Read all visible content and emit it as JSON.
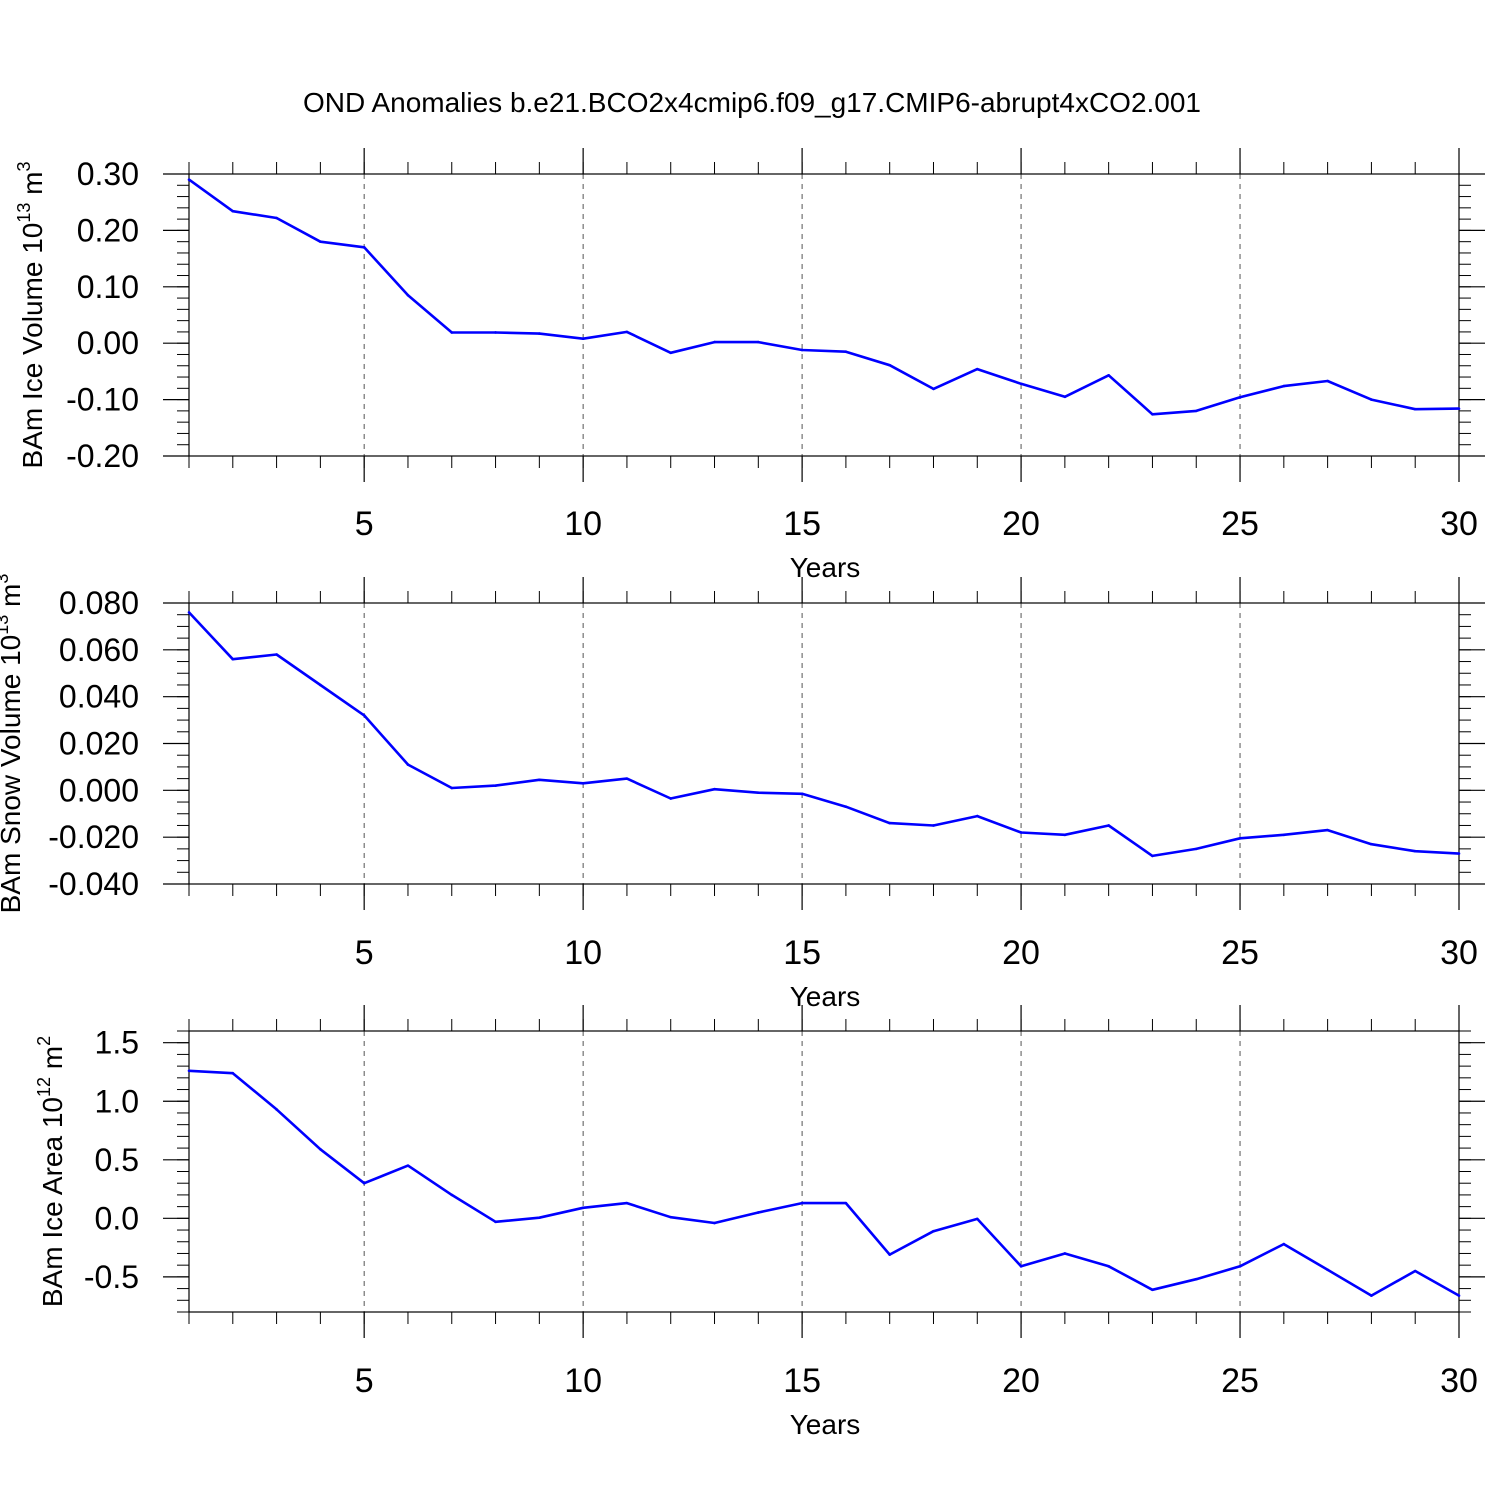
{
  "title": "OND Anomalies b.e21.BCO2x4cmip6.f09_g17.CMIP6-abrupt4xCO2.001",
  "colors": {
    "line": "#0000ff",
    "axis": "#000000",
    "grid": "#555555"
  },
  "chart_data": [
    {
      "type": "line",
      "ylabel": {
        "main": "BAm Ice Volume 10",
        "sup": "13",
        "unit": " m",
        "unit_sup": "3"
      },
      "xlabel": "Years",
      "xlim": [
        1,
        30
      ],
      "ylim": [
        -0.2,
        0.3
      ],
      "x_ticks": [
        5,
        10,
        15,
        20,
        25,
        30
      ],
      "x_tick_labels": [
        "5",
        "10",
        "15",
        "20",
        "25",
        "30"
      ],
      "y_ticks": [
        -0.2,
        -0.1,
        0.0,
        0.1,
        0.2,
        0.3
      ],
      "y_tick_labels": [
        "-0.20",
        "-0.10",
        "0.00",
        "0.10",
        "0.20",
        "0.30"
      ],
      "grid": "vertical dashed at major x ticks",
      "x": [
        1,
        2,
        3,
        4,
        5,
        6,
        7,
        8,
        9,
        10,
        11,
        12,
        13,
        14,
        15,
        16,
        17,
        18,
        19,
        20,
        21,
        22,
        23,
        24,
        25,
        26,
        27,
        28,
        29,
        30
      ],
      "series": [
        {
          "values": [
            0.29,
            0.234,
            0.222,
            0.18,
            0.17,
            0.085,
            0.019,
            0.019,
            0.017,
            0.008,
            0.02,
            -0.017,
            0.002,
            0.002,
            -0.012,
            -0.015,
            -0.039,
            -0.081,
            -0.046,
            -0.072,
            -0.095,
            -0.057,
            -0.126,
            -0.12,
            -0.096,
            -0.076,
            -0.067,
            -0.1,
            -0.117,
            -0.116
          ]
        }
      ]
    },
    {
      "type": "line",
      "ylabel": {
        "main": "BAm Snow Volume 10",
        "sup": "13",
        "unit": " m",
        "unit_sup": "3"
      },
      "xlabel": "Years",
      "xlim": [
        1,
        30
      ],
      "ylim": [
        -0.04,
        0.08
      ],
      "x_ticks": [
        5,
        10,
        15,
        20,
        25,
        30
      ],
      "x_tick_labels": [
        "5",
        "10",
        "15",
        "20",
        "25",
        "30"
      ],
      "y_ticks": [
        -0.04,
        -0.02,
        0.0,
        0.02,
        0.04,
        0.06,
        0.08
      ],
      "y_tick_labels": [
        "-0.040",
        "-0.020",
        "0.000",
        "0.020",
        "0.040",
        "0.060",
        "0.080"
      ],
      "grid": "vertical dashed at major x ticks",
      "x": [
        1,
        2,
        3,
        4,
        5,
        6,
        7,
        8,
        9,
        10,
        11,
        12,
        13,
        14,
        15,
        16,
        17,
        18,
        19,
        20,
        21,
        22,
        23,
        24,
        25,
        26,
        27,
        28,
        29,
        30
      ],
      "series": [
        {
          "values": [
            0.076,
            0.056,
            0.058,
            0.045,
            0.032,
            0.011,
            0.001,
            0.002,
            0.0045,
            0.003,
            0.005,
            -0.0035,
            0.0005,
            -0.001,
            -0.0015,
            -0.007,
            -0.014,
            -0.015,
            -0.011,
            -0.018,
            -0.019,
            -0.015,
            -0.028,
            -0.025,
            -0.0205,
            -0.019,
            -0.017,
            -0.023,
            -0.026,
            -0.027
          ]
        }
      ]
    },
    {
      "type": "line",
      "ylabel": {
        "main": "BAm Ice Area 10",
        "sup": "12",
        "unit": " m",
        "unit_sup": "2"
      },
      "xlabel": "Years",
      "xlim": [
        1,
        30
      ],
      "ylim": [
        -0.8,
        1.6
      ],
      "x_ticks": [
        5,
        10,
        15,
        20,
        25,
        30
      ],
      "x_tick_labels": [
        "5",
        "10",
        "15",
        "20",
        "25",
        "30"
      ],
      "y_ticks": [
        -0.5,
        0.0,
        0.5,
        1.0,
        1.5
      ],
      "y_tick_labels": [
        "-0.5",
        "0.0",
        "0.5",
        "1.0",
        "1.5"
      ],
      "grid": "vertical dashed at major x ticks",
      "x": [
        1,
        2,
        3,
        4,
        5,
        6,
        7,
        8,
        9,
        10,
        11,
        12,
        13,
        14,
        15,
        16,
        17,
        18,
        19,
        20,
        21,
        22,
        23,
        24,
        25,
        26,
        27,
        28,
        29,
        30
      ],
      "series": [
        {
          "values": [
            1.26,
            1.24,
            0.93,
            0.59,
            0.3,
            0.45,
            0.2,
            -0.03,
            0.005,
            0.09,
            0.13,
            0.01,
            -0.04,
            0.05,
            0.13,
            0.13,
            -0.31,
            -0.11,
            -0.005,
            -0.41,
            -0.3,
            -0.41,
            -0.61,
            -0.52,
            -0.41,
            -0.22,
            -0.44,
            -0.66,
            -0.45,
            -0.66
          ]
        }
      ]
    }
  ]
}
